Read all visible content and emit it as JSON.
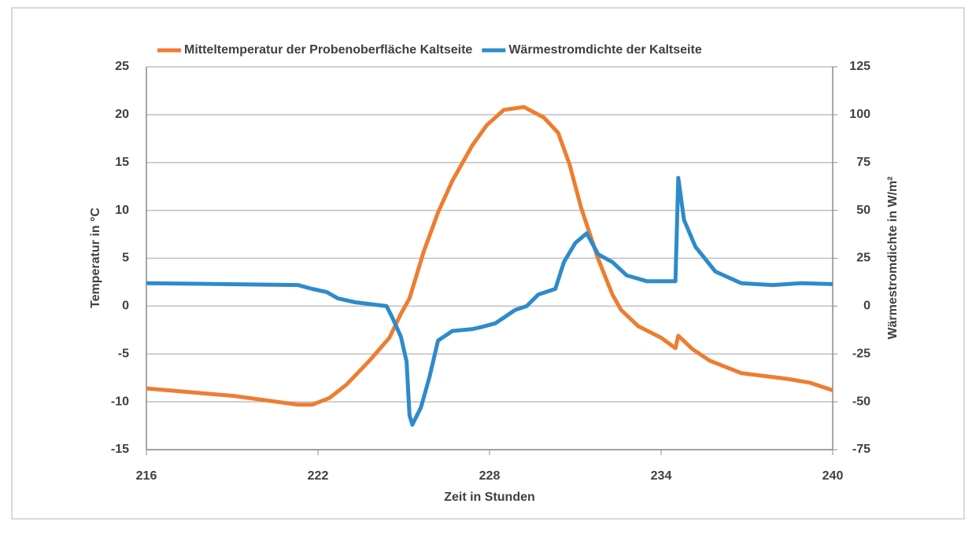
{
  "chart_data": {
    "type": "line",
    "xlabel": "Zeit in Stunden",
    "ylabel": "Temperatur in °C",
    "y2label": "Wärmestromdichte in  W/m²",
    "xlim": [
      216,
      240
    ],
    "xticks": [
      216,
      222,
      228,
      234,
      240
    ],
    "ylim": [
      -15,
      25
    ],
    "yticks": [
      -15,
      -10,
      -5,
      0,
      5,
      10,
      15,
      20,
      25
    ],
    "y2lim": [
      -75,
      125
    ],
    "y2ticks": [
      -75,
      -50,
      -25,
      0,
      25,
      50,
      75,
      100,
      125
    ],
    "grid": true,
    "legend": "top",
    "series": [
      {
        "name": "Mitteltemperatur der Probenoberfläche Kaltseite",
        "color": "#ed7d31",
        "x": [
          216,
          219.1,
          221.3,
          221.8,
          222.4,
          223.0,
          223.8,
          224.5,
          224.9,
          225.2,
          225.7,
          226.2,
          226.7,
          227.4,
          227.9,
          228.5,
          229.2,
          229.9,
          230.4,
          230.8,
          231.2,
          231.8,
          232.3,
          232.6,
          233.2,
          234.0,
          234.5,
          234.6,
          235.1,
          235.7,
          236.8,
          238.4,
          239.2,
          240
        ],
        "values": [
          -8.6,
          -9.4,
          -10.3,
          -10.3,
          -9.6,
          -8.2,
          -5.7,
          -3.3,
          -0.8,
          0.8,
          5.7,
          9.8,
          13.1,
          16.8,
          18.9,
          20.5,
          20.8,
          19.7,
          18.1,
          14.8,
          10.3,
          4.9,
          1.2,
          -0.4,
          -2.1,
          -3.3,
          -4.4,
          -3.1,
          -4.5,
          -5.7,
          -7.0,
          -7.6,
          -8.0,
          -8.8
        ]
      },
      {
        "name": "Wärmestromdichte der Kaltseite",
        "color": "#2e8bc9",
        "axis": "y2",
        "x": [
          216,
          221.3,
          221.8,
          222.3,
          222.7,
          223.3,
          224.4,
          224.6,
          224.9,
          225.1,
          225.2,
          225.3,
          225.6,
          225.9,
          226.2,
          226.7,
          227.4,
          227.7,
          228.2,
          228.5,
          228.9,
          229.3,
          229.7,
          230.3,
          230.6,
          231.0,
          231.4,
          231.8,
          232.3,
          232.8,
          233.5,
          234.5,
          234.6,
          234.8,
          235.2,
          235.9,
          236.8,
          237.9,
          238.9,
          240
        ],
        "values": [
          12,
          11,
          9,
          7.4,
          4,
          2,
          0,
          -6,
          -16,
          -29,
          -57,
          -62,
          -53,
          -37,
          -18,
          -13,
          -12,
          -11,
          -9,
          -6,
          -2,
          0,
          6,
          9,
          23,
          33,
          38,
          27,
          23,
          16,
          13,
          13,
          67,
          45,
          31,
          18,
          12,
          11,
          12,
          11.5
        ]
      }
    ]
  }
}
